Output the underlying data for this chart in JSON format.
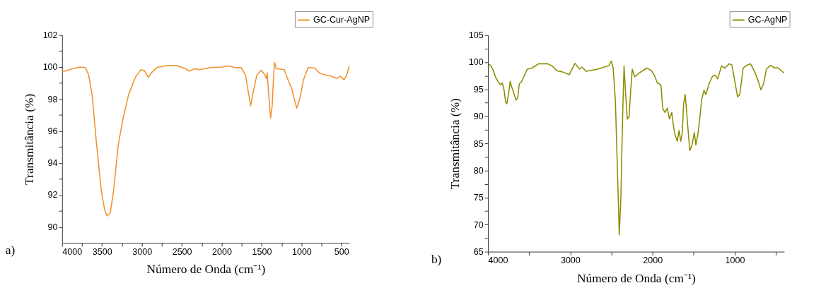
{
  "chart_data": [
    {
      "type": "line",
      "xlabel": "Número de Onda (cm⁻¹)",
      "ylabel": "Transmitância (%)",
      "legend": "top right",
      "annotations": [
        "a)"
      ],
      "xlim": [
        4000,
        400
      ],
      "ylim": [
        89,
        102
      ],
      "xticks": [
        4000,
        {
          "value": 3750,
          "label": null
        },
        3500,
        {
          "value": 3250,
          "label": null
        },
        3000,
        {
          "value": 2750,
          "label": null
        },
        2500,
        {
          "value": 2250,
          "label": null
        },
        2000,
        {
          "value": 1750,
          "label": null
        },
        1500,
        {
          "value": 1250,
          "label": null
        },
        1000,
        {
          "value": 750,
          "label": null
        },
        500
      ],
      "yticks": [
        90,
        {
          "value": 91,
          "label": null
        },
        92,
        {
          "value": 93,
          "label": null
        },
        94,
        {
          "value": 95,
          "label": null
        },
        96,
        {
          "value": 97,
          "label": null
        },
        98,
        {
          "value": 99,
          "label": null
        },
        100,
        {
          "value": 101,
          "label": null
        },
        102
      ],
      "series": [
        {
          "name": "GC-Cur-AgNP",
          "color": "#f0922e",
          "x": [
            4000,
            3880,
            3781,
            3710,
            3667,
            3624,
            3567,
            3510,
            3467,
            3436,
            3396,
            3354,
            3297,
            3240,
            3168,
            3083,
            3012,
            2969,
            2921,
            2884,
            2812,
            2684,
            2570,
            2456,
            2405,
            2342,
            2286,
            2143,
            2001,
            1915,
            1830,
            1759,
            1702,
            1665,
            1636,
            1608,
            1560,
            1503,
            1460,
            1440,
            1431,
            1417,
            1388,
            1368,
            1351,
            1337,
            1317,
            1217,
            1160,
            1123,
            1061,
            1018,
            975,
            918,
            833,
            776,
            691,
            634,
            562,
            514,
            468,
            434,
            400
          ],
          "values": [
            99.7,
            99.88,
            100.0,
            99.97,
            99.5,
            98.25,
            95.1,
            92.3,
            91.06,
            90.68,
            90.9,
            92.3,
            95.1,
            96.7,
            98.25,
            99.35,
            99.83,
            99.77,
            99.35,
            99.63,
            99.97,
            100.1,
            100.1,
            99.9,
            99.74,
            99.9,
            99.83,
            99.97,
            100.0,
            100.07,
            99.97,
            99.97,
            99.5,
            98.38,
            97.58,
            98.38,
            99.5,
            99.8,
            99.5,
            99.28,
            99.63,
            98.66,
            96.8,
            97.56,
            99.35,
            100.29,
            99.9,
            99.83,
            99.07,
            98.66,
            97.42,
            98.1,
            99.2,
            99.97,
            99.93,
            99.63,
            99.49,
            99.45,
            99.28,
            99.42,
            99.2,
            99.49,
            100.11
          ]
        }
      ]
    },
    {
      "type": "line",
      "xlabel": "Número de Onda (cm⁻¹)",
      "ylabel": "Transmitância (%)",
      "legend": "top right",
      "annotations": [
        "b)"
      ],
      "xlim": [
        4000,
        400
      ],
      "ylim": [
        65,
        105
      ],
      "xticks": [
        4000,
        {
          "value": 3500,
          "label": null
        },
        3000,
        {
          "value": 2500,
          "label": null
        },
        2000,
        {
          "value": 1500,
          "label": null
        },
        1000,
        {
          "value": 500,
          "label": null
        }
      ],
      "yticks": [
        65,
        {
          "value": 67.5,
          "label": null
        },
        70,
        {
          "value": 72.5,
          "label": null
        },
        75,
        {
          "value": 77.5,
          "label": null
        },
        80,
        {
          "value": 82.5,
          "label": null
        },
        85,
        {
          "value": 87.5,
          "label": null
        },
        90,
        {
          "value": 92.5,
          "label": null
        },
        95,
        {
          "value": 97.5,
          "label": null
        },
        100,
        {
          "value": 102.5,
          "label": null
        },
        105
      ],
      "series": [
        {
          "name": "GC-AgNP",
          "color": "#8c8c00",
          "x": [
            4000,
            3964,
            3936,
            3909,
            3881,
            3848,
            3826,
            3804,
            3785,
            3771,
            3751,
            3729,
            3716,
            3688,
            3660,
            3638,
            3619,
            3591,
            3564,
            3522,
            3467,
            3384,
            3274,
            3218,
            3163,
            3094,
            3011,
            2942,
            2887,
            2859,
            2804,
            2666,
            2528,
            2500,
            2478,
            2451,
            2423,
            2404,
            2384,
            2362,
            2346,
            2329,
            2307,
            2285,
            2265,
            2246,
            2218,
            2169,
            2072,
            2017,
            1975,
            1942,
            1898,
            1876,
            1849,
            1821,
            1794,
            1766,
            1749,
            1727,
            1699,
            1677,
            1657,
            1638,
            1622,
            1603,
            1589,
            1561,
            1547,
            1520,
            1492,
            1473,
            1445,
            1424,
            1401,
            1374,
            1352,
            1313,
            1271,
            1235,
            1208,
            1161,
            1119,
            1069,
            1036,
            1009,
            967,
            940,
            898,
            857,
            810,
            760,
            719,
            683,
            650,
            616,
            567,
            511,
            478,
            401
          ],
          "values": [
            99.8,
            99.3,
            98.5,
            97.3,
            96.5,
            95.8,
            96.2,
            94.8,
            92.6,
            92.3,
            94.0,
            96.5,
            95.6,
            94.4,
            93.0,
            93.4,
            96.0,
            96.4,
            97.3,
            98.7,
            98.9,
            99.7,
            99.7,
            99.3,
            98.4,
            98.2,
            97.7,
            99.8,
            98.7,
            99.1,
            98.3,
            98.7,
            99.4,
            100.2,
            98.9,
            92.8,
            78.4,
            68.1,
            75.1,
            90.7,
            99.3,
            94.8,
            89.5,
            89.9,
            94.8,
            98.7,
            97.3,
            97.9,
            98.9,
            98.5,
            97.5,
            96.2,
            95.8,
            91.5,
            90.7,
            91.5,
            89.5,
            90.7,
            88.6,
            86.6,
            85.4,
            87.4,
            85.4,
            87.0,
            92.3,
            94.0,
            91.5,
            86.2,
            83.7,
            84.7,
            87.0,
            84.7,
            87.0,
            89.9,
            93.2,
            94.8,
            94.0,
            96.0,
            97.4,
            97.6,
            96.9,
            99.3,
            98.9,
            99.7,
            99.5,
            97.3,
            93.6,
            94.0,
            98.9,
            99.4,
            99.7,
            98.3,
            96.7,
            94.9,
            96.0,
            98.7,
            99.4,
            98.9,
            99.0,
            98.0
          ]
        }
      ]
    }
  ]
}
